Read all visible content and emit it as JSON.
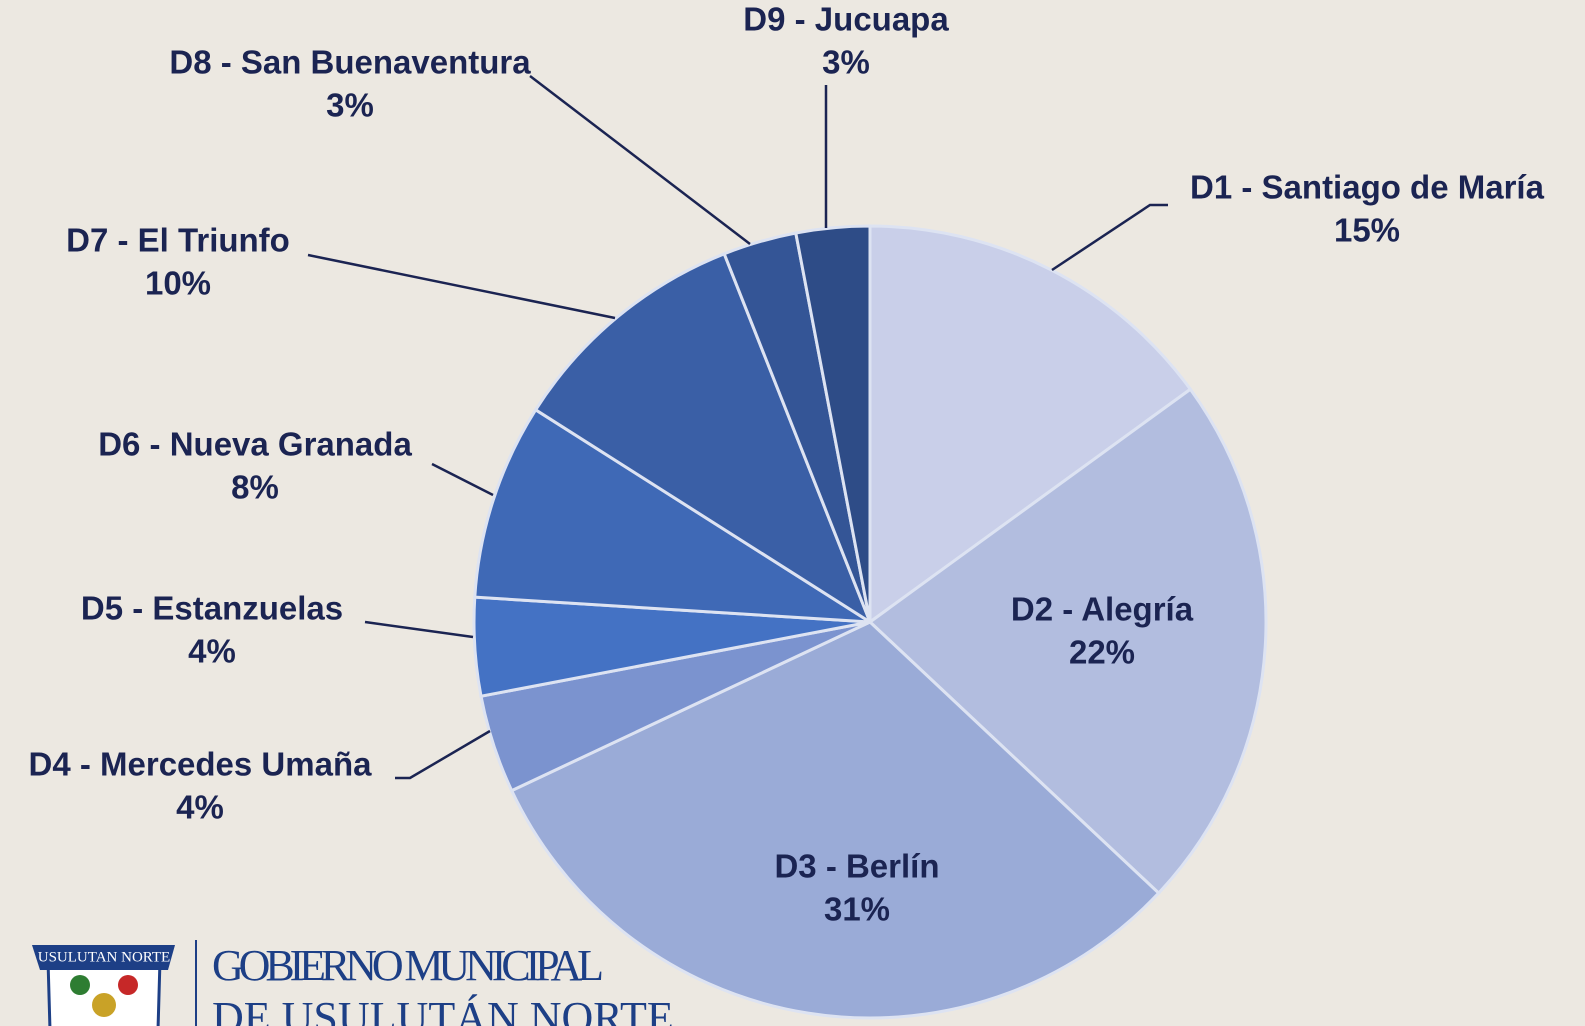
{
  "chart_data": {
    "type": "pie",
    "categories": [
      "D1 - Santiago de María",
      "D2 - Alegría",
      "D3 - Berlín",
      "D4 - Mercedes Umaña",
      "D5 - Estanzuelas",
      "D6 - Nueva Granada",
      "D7 - El Triunfo",
      "D8 - San Buenaventura",
      "D9 - Jucuapa"
    ],
    "values": [
      15,
      22,
      31,
      4,
      4,
      8,
      10,
      3,
      3
    ],
    "value_labels": [
      "15%",
      "22%",
      "31%",
      "4%",
      "4%",
      "8%",
      "10%",
      "3%",
      "3%"
    ],
    "colors": [
      "#c9cfe9",
      "#b2bddf",
      "#9aabd7",
      "#7b93cf",
      "#4472c4",
      "#3f69b6",
      "#3a5fa6",
      "#345596",
      "#2e4c87"
    ]
  },
  "logo": {
    "banner": "USULUTAN NORTE",
    "title": "GOBIERNO MUNICIPAL",
    "subtitle": "DE USULUTÁN NORTE"
  }
}
